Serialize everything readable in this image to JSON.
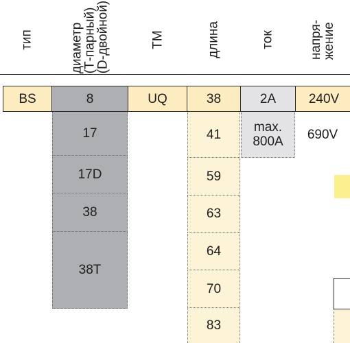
{
  "headers": {
    "type": "тип",
    "diameter": [
      "диаметр",
      "(Т-парный)",
      "(D-двойной)"
    ],
    "tm": "ТМ",
    "length": "длина",
    "current": "ток",
    "voltage": [
      "напря-",
      "жение"
    ]
  },
  "row": {
    "type": "BS",
    "diameter": "8",
    "tm": "UQ",
    "length": "38",
    "current": "2A",
    "voltage": "240V"
  },
  "diameters": [
    "17",
    "17D",
    "38",
    "38T"
  ],
  "lengths": [
    "41",
    "59",
    "63",
    "64",
    "70",
    "83"
  ],
  "current_max": [
    "max.",
    "800A"
  ],
  "voltage_max": "690V"
}
